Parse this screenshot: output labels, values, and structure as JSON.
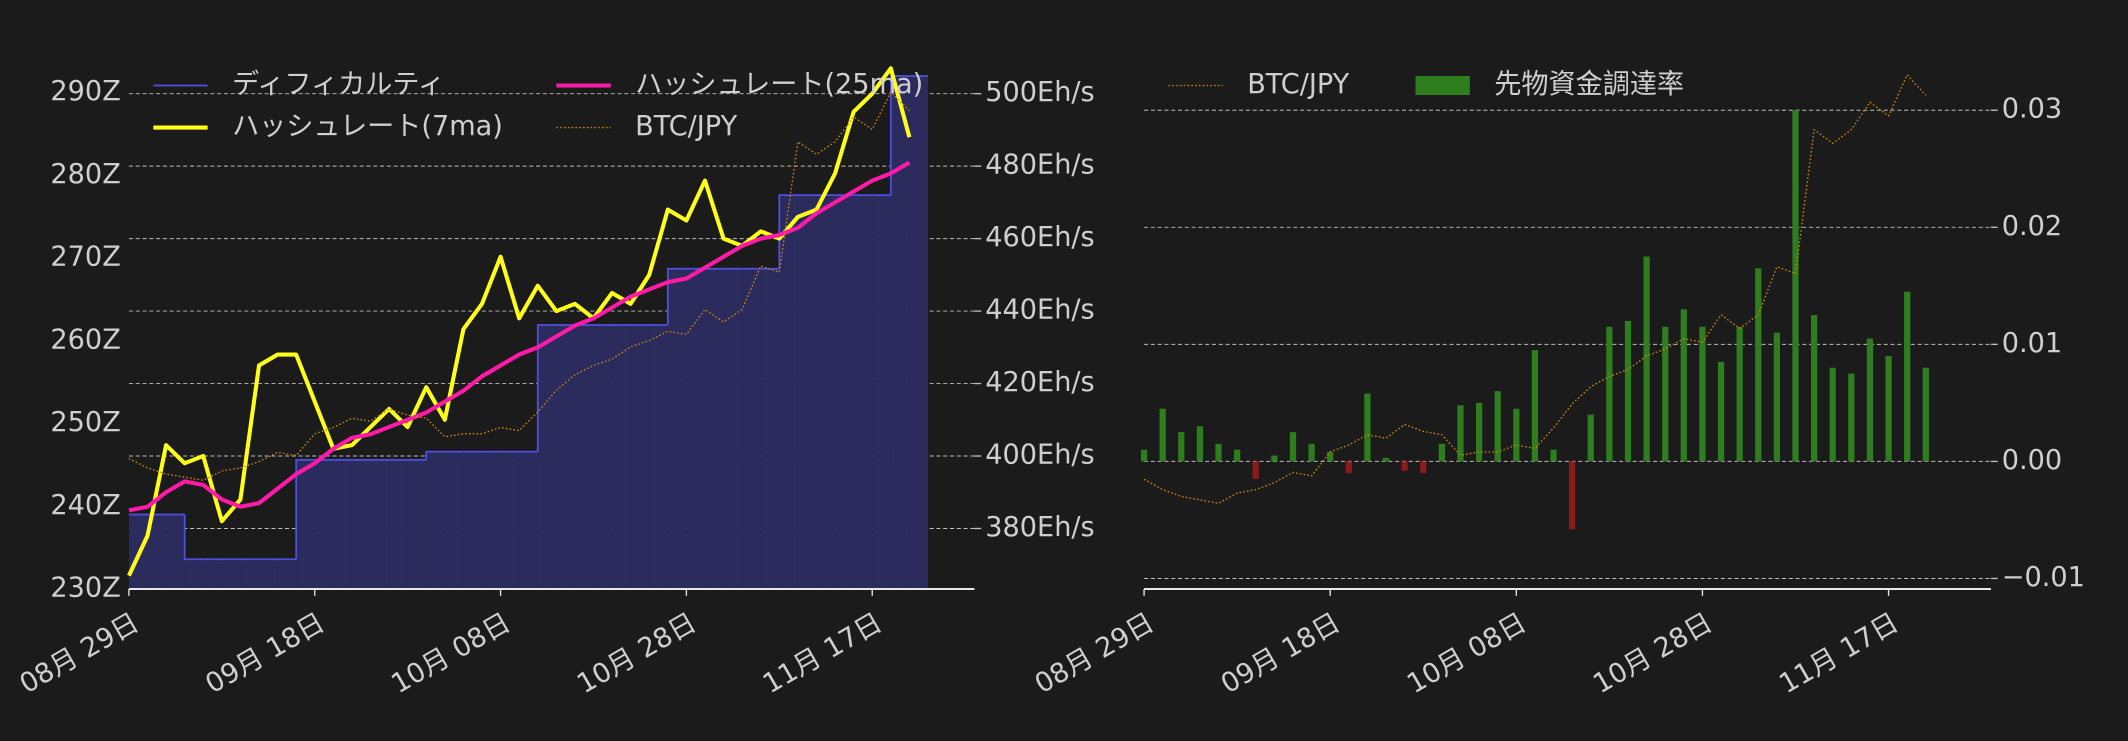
{
  "chart_data": [
    {
      "type": "line",
      "x": [
        "08-29",
        "08-31",
        "09-02",
        "09-04",
        "09-06",
        "09-08",
        "09-10",
        "09-12",
        "09-14",
        "09-16",
        "09-18",
        "09-20",
        "09-22",
        "09-24",
        "09-26",
        "09-28",
        "09-30",
        "10-02",
        "10-04",
        "10-06",
        "10-08",
        "10-10",
        "10-12",
        "10-14",
        "10-16",
        "10-18",
        "10-20",
        "10-22",
        "10-24",
        "10-26",
        "10-28",
        "10-30",
        "11-01",
        "11-03",
        "11-05",
        "11-07",
        "11-09",
        "11-11",
        "11-13",
        "11-15",
        "11-17",
        "11-19",
        "11-21"
      ],
      "xlim": [
        "08-29",
        "11-28"
      ],
      "xticks": [
        {
          "value": "08-29",
          "label": "08月 29日"
        },
        {
          "value": "09-18",
          "label": "09月 18日"
        },
        {
          "value": "10-08",
          "label": "10月 08日"
        },
        {
          "value": "10-28",
          "label": "10月 28日"
        },
        {
          "value": "11-17",
          "label": "11月 17日"
        }
      ],
      "ylim": [
        230,
        293.8
      ],
      "yticks": [
        {
          "value": 230,
          "label": "230Z"
        },
        {
          "value": 240,
          "label": "240Z"
        },
        {
          "value": 250,
          "label": "250Z"
        },
        {
          "value": 260,
          "label": "260Z"
        },
        {
          "value": 270,
          "label": "270Z"
        },
        {
          "value": 280,
          "label": "280Z"
        },
        {
          "value": 290,
          "label": "290Z"
        }
      ],
      "yaxis_side": "left",
      "y2lim": [
        363.3,
        509
      ],
      "y2ticks": [
        {
          "value": 380,
          "label": "380Eh/s"
        },
        {
          "value": 400,
          "label": "400Eh/s"
        },
        {
          "value": 420,
          "label": "420Eh/s"
        },
        {
          "value": 440,
          "label": "440Eh/s"
        },
        {
          "value": 460,
          "label": "460Eh/s"
        },
        {
          "value": 480,
          "label": "480Eh/s"
        },
        {
          "value": 500,
          "label": "500Eh/s"
        }
      ],
      "y3lim": [
        6500000,
        15000000
      ],
      "grid": "y2",
      "legend": "upper left",
      "legend_columns": 2,
      "series": [
        {
          "name": "ディフィカルティ",
          "color": "#5050e0",
          "fill": "#2c2b5e",
          "style": "step",
          "values": [
            239,
            239,
            239,
            233.6,
            233.6,
            233.6,
            233.6,
            233.6,
            233.6,
            245.6,
            245.6,
            245.6,
            245.6,
            245.6,
            245.6,
            245.6,
            246.6,
            246.6,
            246.6,
            246.6,
            246.6,
            246.6,
            261.9,
            261.9,
            261.9,
            261.9,
            261.9,
            261.9,
            261.9,
            268.7,
            268.7,
            268.7,
            268.7,
            268.7,
            268.7,
            277.6,
            277.6,
            277.6,
            277.6,
            277.6,
            277.6,
            292,
            292
          ]
        },
        {
          "name": "ハッシュレート(7ma)",
          "color": "#ffff1a",
          "axis": "y2",
          "style": "solid",
          "values": [
            367,
            378,
            403,
            398,
            400,
            382,
            388,
            425,
            428,
            428,
            415,
            402,
            403,
            408,
            413,
            408,
            419,
            410,
            435,
            442,
            455,
            438,
            447,
            440,
            442,
            438,
            445,
            442,
            450,
            468,
            465,
            476,
            460,
            458,
            462,
            460,
            466,
            468,
            478,
            495,
            500,
            507,
            488
          ]
        },
        {
          "name": "ハッシュレート(25ma)",
          "color": "#ff1aa8",
          "axis": "y2",
          "style": "solid",
          "values": [
            385,
            386,
            390,
            393,
            392,
            388,
            386,
            387,
            391,
            395,
            398,
            402,
            405,
            406,
            408,
            410,
            412,
            415,
            418,
            422,
            425,
            428,
            430,
            433,
            436,
            438,
            441,
            444,
            446,
            448,
            449,
            452,
            455,
            458,
            460,
            461,
            463,
            467,
            470,
            473,
            476,
            478,
            481
          ]
        },
        {
          "name": "BTC/JPY",
          "color": "#c8860a",
          "axis": "y3",
          "style": "dotted",
          "values": [
            8600000,
            8450000,
            8350000,
            8300000,
            8250000,
            8400000,
            8450000,
            8550000,
            8700000,
            8650000,
            9000000,
            9100000,
            9250000,
            9200000,
            9400000,
            9300000,
            9250000,
            8950000,
            9000000,
            9000000,
            9100000,
            9050000,
            9350000,
            9700000,
            9950000,
            10100000,
            10200000,
            10400000,
            10500000,
            10650000,
            10600000,
            11000000,
            10800000,
            11000000,
            11700000,
            11600000,
            13700000,
            13500000,
            13700000,
            14100000,
            13900000,
            14500000,
            14200000
          ]
        }
      ]
    },
    {
      "type": "bar",
      "x": [
        "08-29",
        "08-31",
        "09-02",
        "09-04",
        "09-06",
        "09-08",
        "09-10",
        "09-12",
        "09-14",
        "09-16",
        "09-18",
        "09-20",
        "09-22",
        "09-24",
        "09-26",
        "09-28",
        "09-30",
        "10-02",
        "10-04",
        "10-06",
        "10-08",
        "10-10",
        "10-12",
        "10-14",
        "10-16",
        "10-18",
        "10-20",
        "10-22",
        "10-24",
        "10-26",
        "10-28",
        "10-30",
        "11-01",
        "11-03",
        "11-05",
        "11-07",
        "11-09",
        "11-11",
        "11-13",
        "11-15",
        "11-17",
        "11-19",
        "11-21"
      ],
      "xlim": [
        "08-29",
        "11-28"
      ],
      "xticks": [
        {
          "value": "08-29",
          "label": "08月 29日"
        },
        {
          "value": "09-18",
          "label": "09月 18日"
        },
        {
          "value": "10-08",
          "label": "10月 08日"
        },
        {
          "value": "10-28",
          "label": "10月 28日"
        },
        {
          "value": "11-17",
          "label": "11月 17日"
        }
      ],
      "ylim": [
        -0.0109,
        0.0342
      ],
      "yticks": [
        {
          "value": -0.01,
          "label": "−0.01"
        },
        {
          "value": 0,
          "label": "0.00"
        },
        0.01,
        0.02,
        0.03
      ],
      "yaxis_side": "right",
      "y3lim": [
        7000000,
        14700000
      ],
      "grid": "y",
      "legend": "upper left",
      "legend_columns": 2,
      "series": [
        {
          "name": "BTC/JPY",
          "color": "#c8860a",
          "axis": "y3",
          "style": "dotted",
          "values": [
            8600000,
            8450000,
            8350000,
            8300000,
            8250000,
            8400000,
            8450000,
            8550000,
            8700000,
            8650000,
            9000000,
            9100000,
            9250000,
            9200000,
            9400000,
            9300000,
            9250000,
            8950000,
            9000000,
            9000000,
            9100000,
            9050000,
            9350000,
            9700000,
            9950000,
            10100000,
            10200000,
            10400000,
            10500000,
            10650000,
            10600000,
            11000000,
            10800000,
            11000000,
            11700000,
            11600000,
            13700000,
            13500000,
            13700000,
            14100000,
            13900000,
            14500000,
            14200000
          ]
        },
        {
          "name": "先物資金調達率",
          "color": "#2e7d1e",
          "negative_color": "#8b1a1a",
          "style": "bar",
          "values": [
            0.001,
            0.0045,
            0.0025,
            0.003,
            0.0015,
            0.001,
            -0.0015,
            0.0005,
            0.0025,
            0.0015,
            0.0008,
            -0.001,
            0.0058,
            0.0003,
            -0.0008,
            -0.001,
            0.0015,
            0.0048,
            0.005,
            0.006,
            0.0045,
            0.0095,
            0.001,
            -0.0058,
            0.004,
            0.0115,
            0.012,
            0.0175,
            0.0115,
            0.013,
            0.0115,
            0.0085,
            0.0115,
            0.0165,
            0.011,
            0.03,
            0.0125,
            0.008,
            0.0075,
            0.0105,
            0.009,
            0.0145,
            0.008
          ]
        }
      ]
    }
  ]
}
